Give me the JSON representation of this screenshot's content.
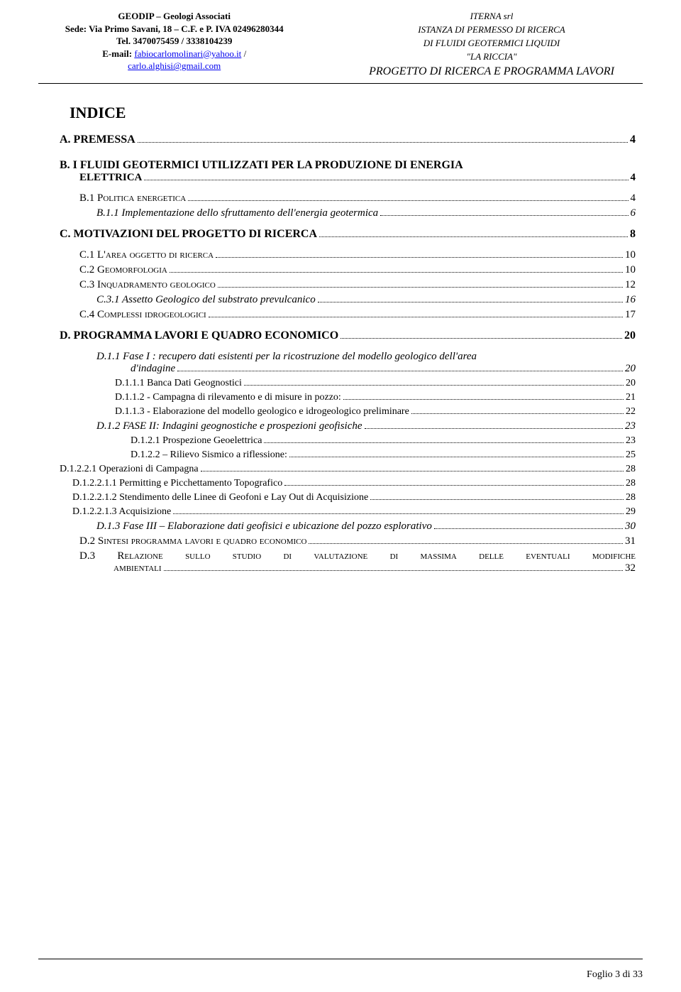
{
  "header": {
    "left": {
      "line1": "GEODIP – Geologi Associati",
      "line2_a": "Sede: Via Primo Savani, 18 – C.F. e P. IVA ",
      "line2_b": "02496280344",
      "line3": "Tel. 3470075459 / 3338104239",
      "line4_a": "E-mail: ",
      "line4_b": "fabiocarlomolinari@yahoo.it",
      "line4_c": " /",
      "line5": "carlo.alghisi@gmail.com"
    },
    "right": {
      "line1": "ITERNA srl",
      "line2": "ISTANZA DI PERMESSO DI RICERCA",
      "line3": "DI FLUIDI GEOTERMICI LIQUIDI",
      "line4": "\"LA RICCIA\"",
      "line5": "PROGETTO DI RICERCA E PROGRAMMA LAVORI"
    }
  },
  "indice_title": "INDICE",
  "toc": [
    {
      "cls": "lvl1 toc-line",
      "label": "A. PREMESSA",
      "page": "4"
    },
    {
      "cls": "spacer-md"
    },
    {
      "cls": "lvl1-multi",
      "label_a": "B. I FLUIDI GEOTERMICI UTILIZZATI PER LA PRODUZIONE DI ENERGIA",
      "label_b": "ELETTRICA",
      "page": "4"
    },
    {
      "cls": "spacer-sm"
    },
    {
      "cls": "lvl2 toc-line",
      "label": "B.1 P",
      "sc": "OLITICA ENERGETICA",
      "page": "4"
    },
    {
      "cls": "lvl3 toc-line",
      "label": "B.1.1  Implementazione dello sfruttamento dell'energia geotermica",
      "page": "6"
    },
    {
      "cls": "spacer-sm"
    },
    {
      "cls": "lvl1 toc-line",
      "label": "C. MOTIVAZIONI DEL PROGETTO DI RICERCA",
      "page": "8"
    },
    {
      "cls": "spacer-sm"
    },
    {
      "cls": "lvl2 toc-line",
      "label": "C.1 L'",
      "sc": "AREA OGGETTO DI RICERCA",
      "page": "10"
    },
    {
      "cls": "lvl2 toc-line",
      "label": "C.2 G",
      "sc": "EOMORFOLOGIA",
      "page": "10"
    },
    {
      "cls": "lvl2 toc-line",
      "label": "C.3 I",
      "sc": "NQUADRAMENTO GEOLOGICO",
      "page": "12"
    },
    {
      "cls": "lvl3 toc-line",
      "label": "C.3.1  Assetto Geologico del substrato prevulcanico",
      "page": "16"
    },
    {
      "cls": "lvl2 toc-line",
      "label": "C.4 C",
      "sc": "OMPLESSI IDROGEOLOGICI",
      "page": "17"
    },
    {
      "cls": "spacer-sm"
    },
    {
      "cls": "lvl1 toc-line",
      "label": "D. PROGRAMMA LAVORI E QUADRO ECONOMICO",
      "page": "20"
    },
    {
      "cls": "spacer-sm"
    },
    {
      "cls": "lvl3-multi",
      "label_a": "D.1.1  Fase I : recupero dati esistenti per la ricostruzione del modello geologico dell'area",
      "label_b": "d'indagine",
      "page": "20"
    },
    {
      "cls": "lvl4 toc-line",
      "label": "D.1.1.1 Banca Dati Geognostici",
      "page": "20"
    },
    {
      "cls": "lvl4 toc-line",
      "label": "D.1.1.2 - Campagna di rilevamento e di misure in pozzo:",
      "page": "21"
    },
    {
      "cls": "lvl4 toc-line",
      "label": "D.1.1.3 - Elaborazione del modello geologico e idrogeologico preliminare",
      "page": "22"
    },
    {
      "cls": "lvl3 toc-line",
      "label": "D.1.2  FASE II: Indagini geognostiche e prospezioni geofisiche",
      "page": "23"
    },
    {
      "cls": "lvl5 toc-line",
      "label": "D.1.2.1 Prospezione Geoelettrica",
      "page": "23"
    },
    {
      "cls": "lvl5 toc-line",
      "label": "D.1.2.2 – Rilievo Sismico a riflessione: ",
      "page": "25"
    },
    {
      "cls": "lvl2b toc-line",
      "label": "D.1.2.2.1 Operazioni di Campagna",
      "page": "28"
    },
    {
      "cls": "lvl2c toc-line",
      "label": "D.1.2.2.1.1 Permitting e Picchettamento Topografico",
      "page": "28"
    },
    {
      "cls": "lvl2c toc-line",
      "label": "D.1.2.2.1.2  Stendimento delle Linee di Geofoni e Lay Out di Acquisizione",
      "page": "28"
    },
    {
      "cls": "lvl2c toc-line",
      "label": "D.1.2.2.1.3 Acquisizione",
      "page": "29"
    },
    {
      "cls": "lvl3 toc-line",
      "label": "D.1.3  Fase III – Elaborazione dati geofisici e ubicazione del pozzo esplorativo",
      "page": "30"
    },
    {
      "cls": "lvl2 toc-line",
      "label": "D.2 S",
      "sc": "INTESI PROGRAMMA LAVORI E QUADRO ECONOMICO",
      "page": "31"
    },
    {
      "cls": "justify",
      "label_a": "D.3  R",
      "sc_a": "ELAZIONE  SULLO  STUDIO  DI  VALUTAZIONE  DI  MASSIMA  DELLE  EVENTUALI  MODIFICHE",
      "label_b": "AMBIENTALI",
      "page": "32"
    }
  ],
  "footer": {
    "text": "Foglio 3 di 33"
  }
}
